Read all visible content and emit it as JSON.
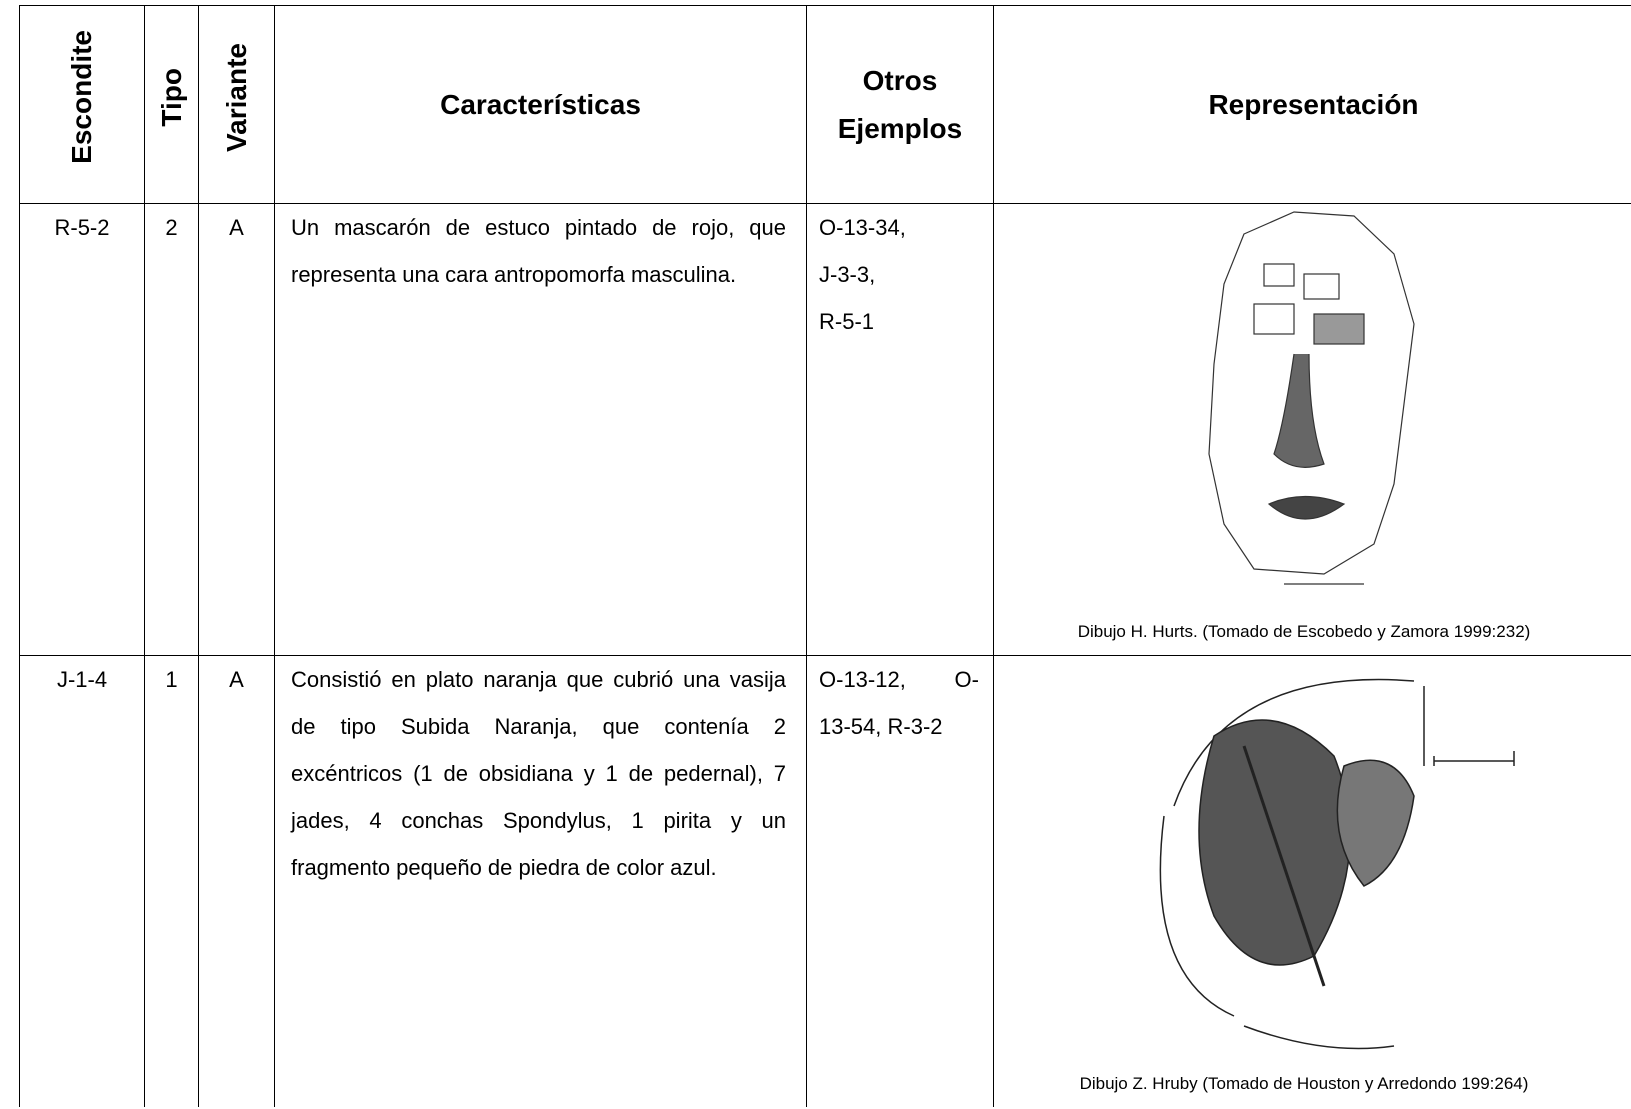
{
  "table": {
    "header": [
      "Escondite",
      "Tipo",
      "Variante",
      "Características",
      "Otros Ejemplos",
      "Representación"
    ],
    "rows": [
      [
        "R-5-2",
        "2",
        "A",
        "Un mascarón de estuco pintado de rojo, que representa una cara antropomorfa masculina.",
        [
          "O-13-34,",
          "J-3-3,",
          "R-5-1"
        ],
        "Dibujo H. Hurts. (Tomado de Escobedo y Zamora 1999:232)"
      ],
      [
        "J-1-4",
        "1",
        "A",
        "Consistió en plato naranja que cubrió una vasija de tipo Subida Naranja, que contenía 2 excéntricos (1 de obsidiana y 1 de pedernal), 7 jades, 4 conchas Spondylus, 1 pirita y un fragmento pequeño de piedra de color azul.",
        [
          "O-13-12, O-",
          "13-54, R-3-2"
        ],
        "Dibujo Z. Hruby (Tomado de Houston y Arredondo 199:264)"
      ]
    ]
  }
}
